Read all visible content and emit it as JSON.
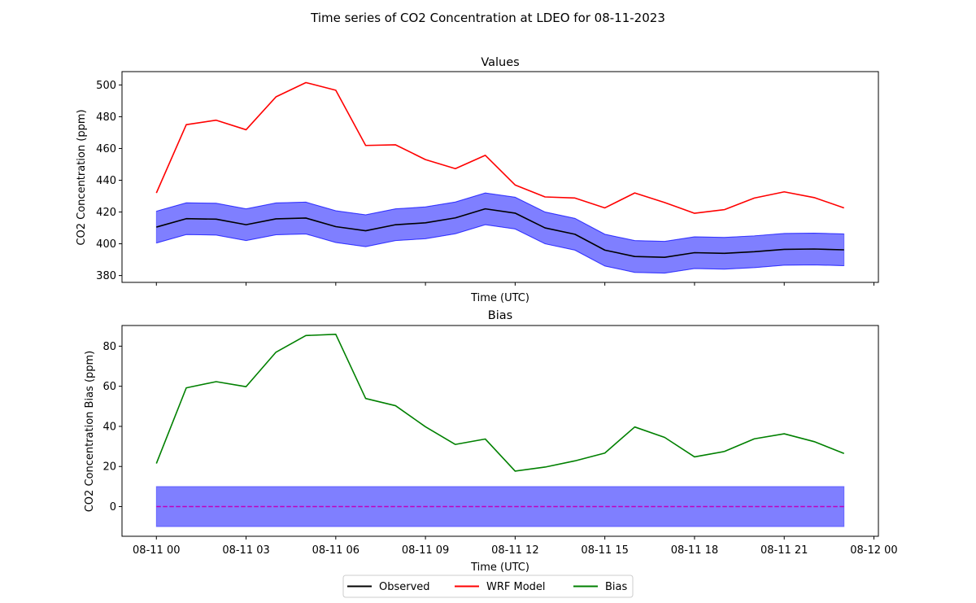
{
  "figure": {
    "suptitle": "Time series of CO2 Concentration at LDEO for 08-11-2023"
  },
  "legend": {
    "placement": "bottom-center",
    "entries": [
      {
        "label": "Observed",
        "color": "#000000"
      },
      {
        "label": "WRF Model",
        "color": "#ff0000"
      },
      {
        "label": "Bias",
        "color": "#008000"
      }
    ]
  },
  "colors": {
    "observed": "#000000",
    "model": "#ff0000",
    "bias": "#008000",
    "band": "#0000ff",
    "zero_line": "#bf00bf"
  },
  "chart_data": [
    {
      "type": "line",
      "title": "Values",
      "xlabel": "Time (UTC)",
      "ylabel": "CO2 Concentration (ppm)",
      "x_hours": [
        0,
        1,
        2,
        3,
        4,
        5,
        6,
        7,
        8,
        9,
        10,
        11,
        12,
        13,
        14,
        15,
        16,
        17,
        18,
        19,
        20,
        21,
        22,
        23
      ],
      "xlim_hours": [
        -1.15,
        24.15
      ],
      "ylim": [
        375.7,
        508.4
      ],
      "yticks": [
        380,
        400,
        420,
        440,
        460,
        480,
        500
      ],
      "xticks_hours": [
        0,
        3,
        6,
        9,
        12,
        15,
        18,
        21,
        24
      ],
      "xtick_labels_shown": false,
      "grid": false,
      "series": [
        {
          "name": "Observed",
          "values": [
            410.5,
            415.8,
            415.5,
            412.0,
            415.7,
            416.2,
            410.8,
            408.2,
            412.0,
            413.2,
            416.3,
            422.0,
            419.3,
            410.0,
            406.0,
            396.0,
            392.0,
            391.5,
            394.4,
            394.0,
            395.0,
            396.5,
            396.7,
            396.2
          ]
        },
        {
          "name": "WRF Model",
          "values": [
            432.0,
            475.0,
            477.8,
            471.8,
            492.5,
            501.5,
            496.7,
            461.9,
            462.3,
            453.0,
            447.3,
            455.7,
            437.0,
            429.5,
            428.8,
            422.6,
            432.0,
            426.0,
            419.2,
            421.5,
            428.8,
            432.7,
            429.1,
            422.6
          ]
        }
      ],
      "band": {
        "about": "Observed",
        "half_width": 10
      }
    },
    {
      "type": "line",
      "title": "Bias",
      "xlabel": "Time (UTC)",
      "ylabel": "CO2 Concentration Bias (ppm)",
      "x_hours": [
        0,
        1,
        2,
        3,
        4,
        5,
        6,
        7,
        8,
        9,
        10,
        11,
        12,
        13,
        14,
        15,
        16,
        17,
        18,
        19,
        20,
        21,
        22,
        23
      ],
      "xlim_hours": [
        -1.15,
        24.15
      ],
      "ylim": [
        -14.8,
        90.3
      ],
      "yticks": [
        0,
        20,
        40,
        60,
        80
      ],
      "xticks_hours": [
        0,
        3,
        6,
        9,
        12,
        15,
        18,
        21,
        24
      ],
      "xtick_labels": [
        "08-11 00",
        "08-11 03",
        "08-11 06",
        "08-11 09",
        "08-11 12",
        "08-11 15",
        "08-11 18",
        "08-11 21",
        "08-12 00"
      ],
      "grid": false,
      "series": [
        {
          "name": "Bias",
          "values": [
            21.5,
            59.2,
            62.3,
            59.8,
            77.0,
            85.3,
            85.9,
            53.9,
            50.3,
            39.8,
            31.0,
            33.7,
            17.7,
            19.7,
            22.8,
            26.7,
            39.7,
            34.5,
            24.8,
            27.5,
            33.8,
            36.3,
            32.4,
            26.5
          ]
        }
      ],
      "band": {
        "lower": -10,
        "upper": 10,
        "x_hours": [
          0,
          23
        ]
      },
      "reference_line": {
        "value": 0,
        "style": "dashed"
      }
    }
  ]
}
